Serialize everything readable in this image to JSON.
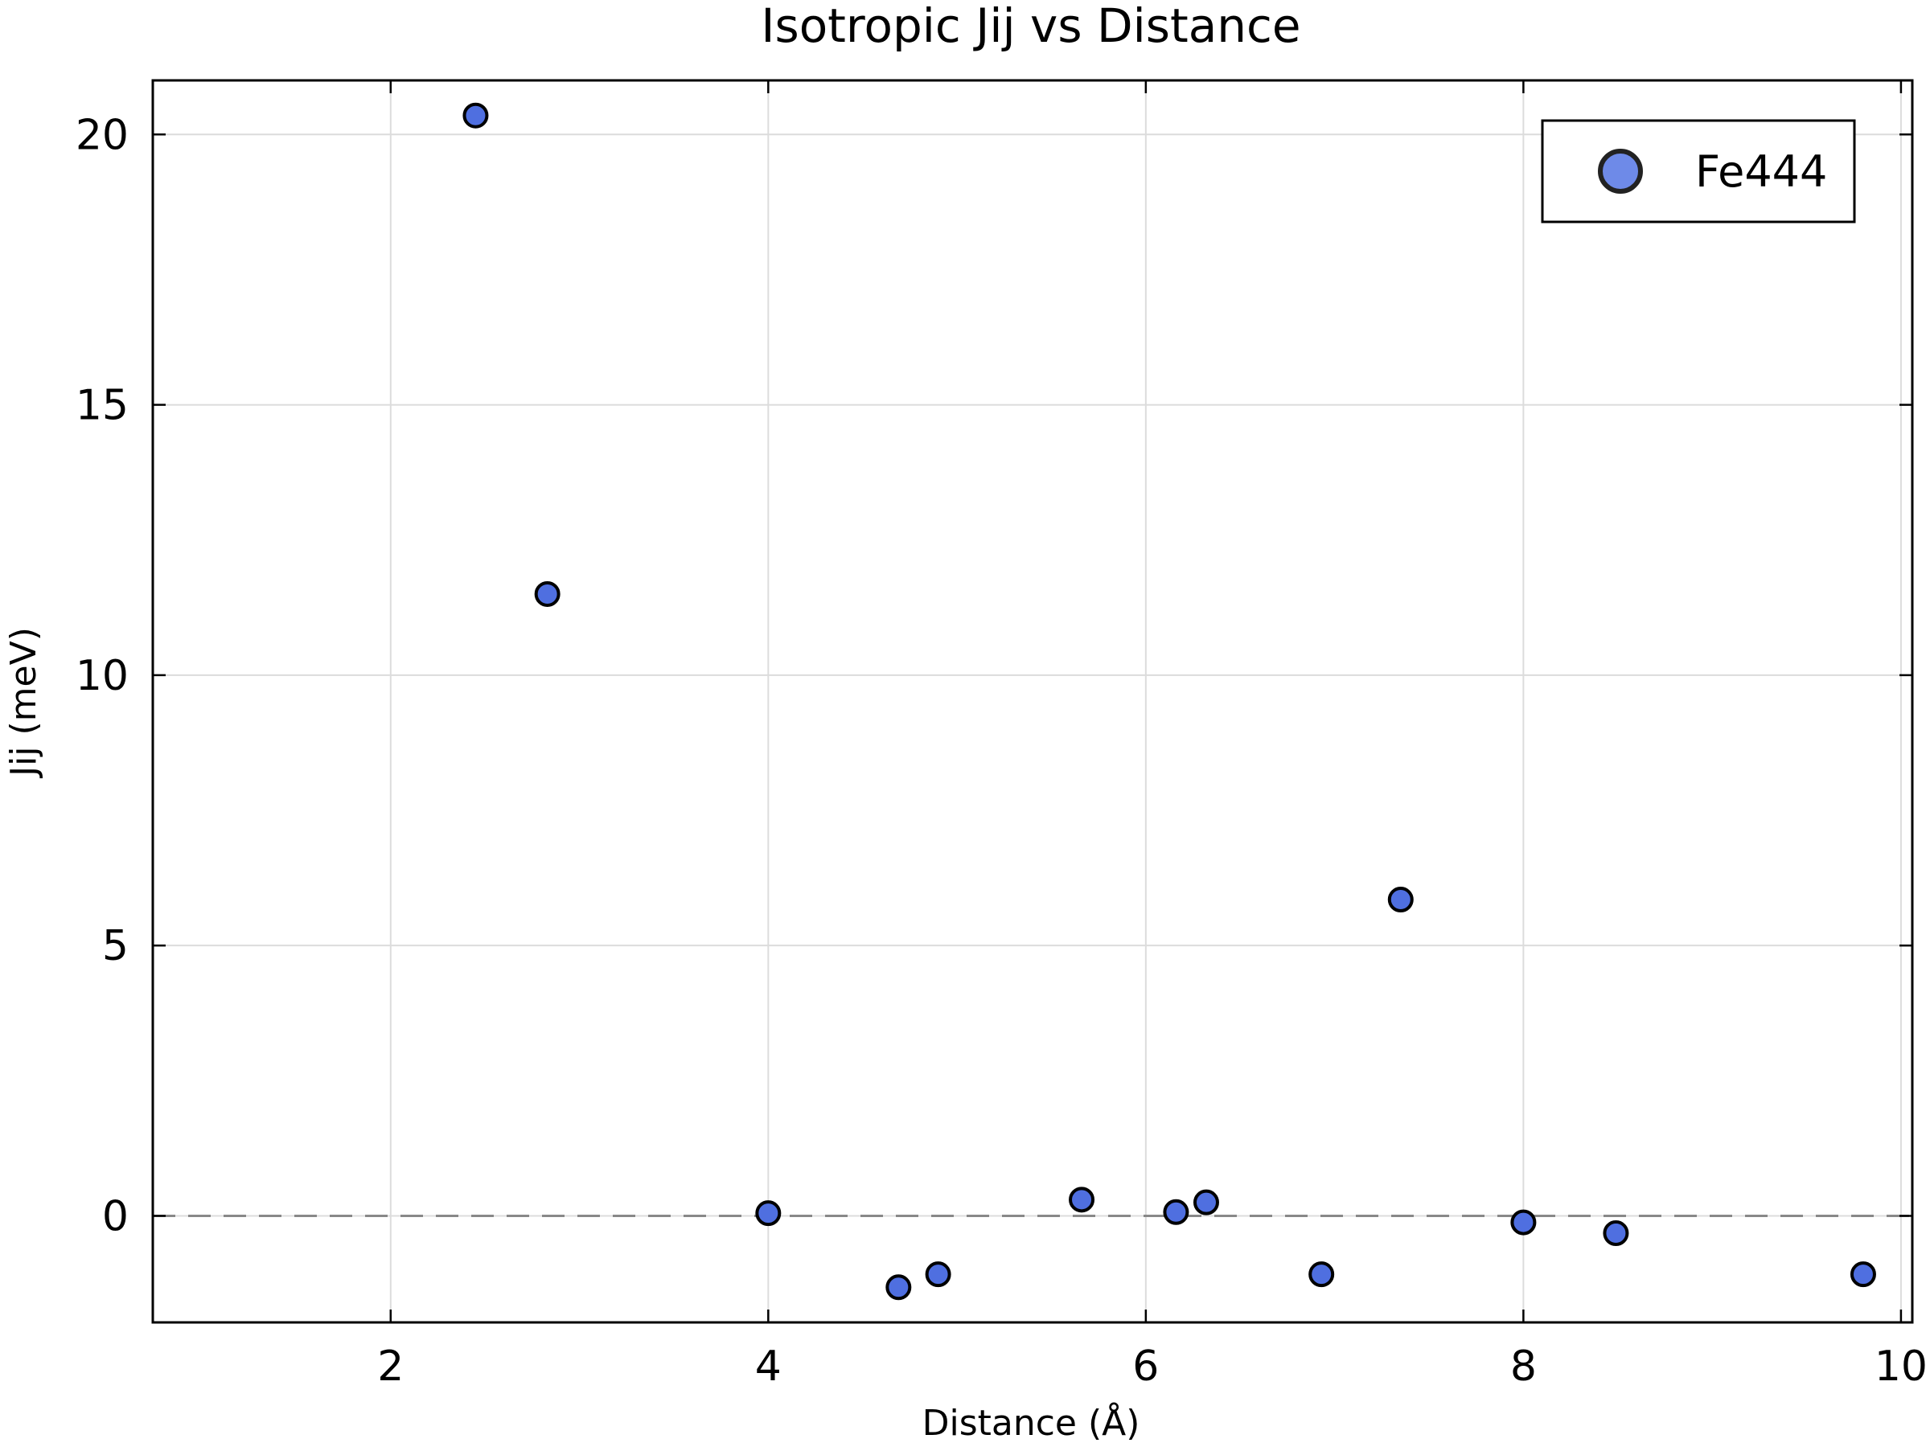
{
  "chart_data": {
    "type": "scatter",
    "title": "Isotropic Jij vs Distance",
    "xlabel": "Distance (Å)",
    "ylabel": "Jij (meV)",
    "xlim": [
      0.74,
      10.06
    ],
    "ylim": [
      -1.97,
      21.0
    ],
    "xticks": [
      2,
      4,
      6,
      8,
      10
    ],
    "yticks": [
      0,
      5,
      10,
      15,
      20
    ],
    "grid": true,
    "reference_line": {
      "y": 0,
      "style": "dashed",
      "color": "#888888"
    },
    "legend_position": "top-right",
    "series": [
      {
        "name": "Fe444",
        "color": "#4f6fe0",
        "x": [
          2.45,
          2.83,
          4.0,
          4.69,
          4.9,
          5.66,
          6.16,
          6.32,
          6.93,
          7.35,
          8.0,
          8.49,
          9.8
        ],
        "y": [
          20.35,
          11.5,
          0.05,
          -1.32,
          -1.08,
          0.3,
          0.07,
          0.25,
          -1.08,
          5.85,
          -0.12,
          -0.32,
          -1.08
        ]
      }
    ]
  }
}
